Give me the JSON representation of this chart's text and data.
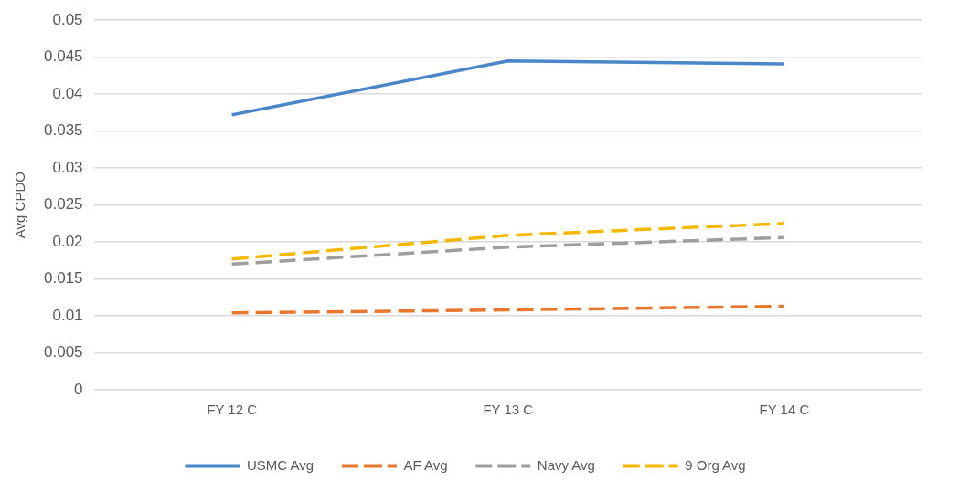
{
  "chart_data": {
    "type": "line",
    "ylabel": "Avg CPDO",
    "categories": [
      "FY 12 C",
      "FY 13 C",
      "FY 14 C"
    ],
    "series": [
      {
        "name": "USMC Avg",
        "color": "#4a86c8",
        "values": [
          0.0372,
          0.0445,
          0.0441
        ],
        "line_style": "solid"
      },
      {
        "name": "AF Avg",
        "color": "#e8772e",
        "values": [
          0.0104,
          0.0108,
          0.0113
        ],
        "line_style": "dashed"
      },
      {
        "name": "Navy Avg",
        "color": "#9e9e9e",
        "values": [
          0.017,
          0.0193,
          0.0206
        ],
        "line_style": "dashed"
      },
      {
        "name": "9 Org Avg",
        "color": "#f5b800",
        "values": [
          0.0177,
          0.0209,
          0.0225
        ],
        "line_style": "dashed"
      }
    ],
    "ylim": [
      0,
      0.05
    ],
    "yticks": [
      0,
      0.005,
      0.01,
      0.015,
      0.02,
      0.025,
      0.03,
      0.035,
      0.04,
      0.045,
      0.05
    ],
    "grid": "y",
    "legend": "bottom",
    "marker": "none"
  }
}
